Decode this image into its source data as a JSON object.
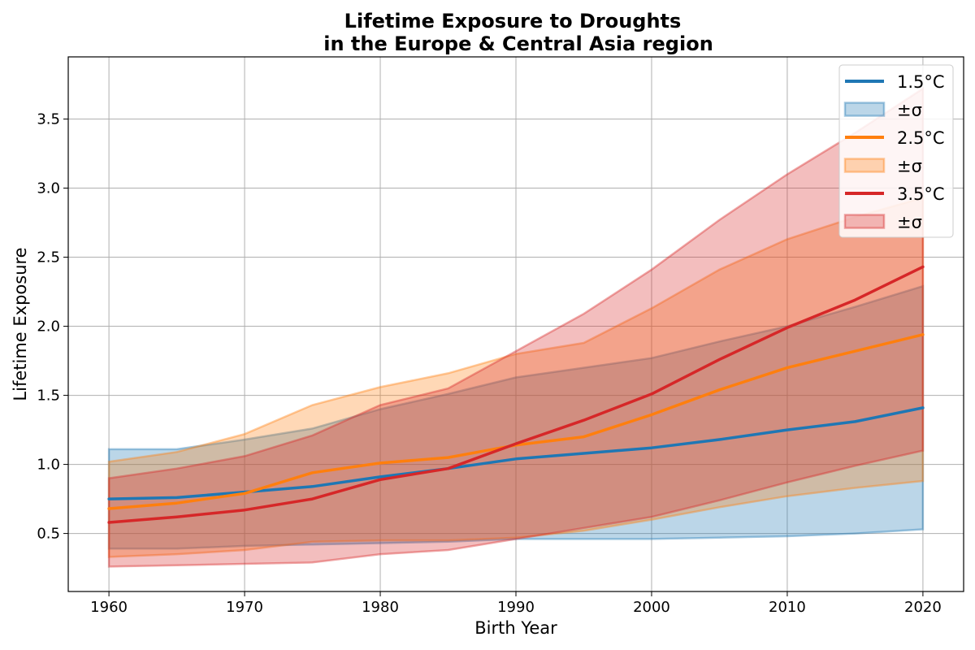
{
  "chart_data": {
    "type": "area",
    "title_line1": "Lifetime Exposure to Droughts",
    "title_line2": "in the Europe & Central Asia region",
    "xlabel": "Birth Year",
    "ylabel": "Lifetime Exposure",
    "xlim": [
      1957,
      2023
    ],
    "ylim": [
      0.08,
      3.95
    ],
    "xticks": [
      1960,
      1970,
      1980,
      1990,
      2000,
      2010,
      2020
    ],
    "yticks": [
      0.5,
      1.0,
      1.5,
      2.0,
      2.5,
      3.0,
      3.5
    ],
    "ytick_labels": [
      "0.5",
      "1.0",
      "1.5",
      "2.0",
      "2.5",
      "3.0",
      "3.5"
    ],
    "grid": true,
    "legend_position": "top-right",
    "x": [
      1960,
      1965,
      1970,
      1975,
      1980,
      1985,
      1990,
      1995,
      2000,
      2005,
      2010,
      2015,
      2020
    ],
    "series": [
      {
        "name": "1.5°C",
        "band_label": "±σ",
        "color": "#1f77b4",
        "band_color": "#1f77b4",
        "mean": [
          0.75,
          0.76,
          0.8,
          0.84,
          0.91,
          0.97,
          1.04,
          1.08,
          1.12,
          1.18,
          1.25,
          1.31,
          1.41
        ],
        "upper": [
          1.11,
          1.11,
          1.18,
          1.26,
          1.4,
          1.51,
          1.63,
          1.7,
          1.77,
          1.89,
          2.0,
          2.14,
          2.29
        ],
        "lower": [
          0.39,
          0.39,
          0.41,
          0.42,
          0.43,
          0.44,
          0.46,
          0.46,
          0.46,
          0.47,
          0.48,
          0.5,
          0.53
        ]
      },
      {
        "name": "2.5°C",
        "band_label": "±σ",
        "color": "#ff7f0e",
        "band_color": "#ff7f0e",
        "mean": [
          0.68,
          0.72,
          0.79,
          0.94,
          1.01,
          1.05,
          1.14,
          1.2,
          1.36,
          1.54,
          1.7,
          1.82,
          1.94
        ],
        "upper": [
          1.02,
          1.09,
          1.22,
          1.43,
          1.56,
          1.66,
          1.8,
          1.88,
          2.13,
          2.41,
          2.63,
          2.79,
          2.93
        ],
        "lower": [
          0.33,
          0.35,
          0.38,
          0.44,
          0.45,
          0.45,
          0.47,
          0.52,
          0.6,
          0.69,
          0.77,
          0.83,
          0.88
        ]
      },
      {
        "name": "3.5°C",
        "band_label": "±σ",
        "color": "#d62728",
        "band_color": "#d62728",
        "mean": [
          0.58,
          0.62,
          0.67,
          0.75,
          0.89,
          0.97,
          1.15,
          1.32,
          1.51,
          1.76,
          1.99,
          2.19,
          2.43
        ],
        "upper": [
          0.9,
          0.97,
          1.06,
          1.21,
          1.43,
          1.55,
          1.82,
          2.09,
          2.41,
          2.77,
          3.1,
          3.4,
          3.72
        ],
        "lower": [
          0.26,
          0.27,
          0.28,
          0.29,
          0.35,
          0.38,
          0.46,
          0.54,
          0.62,
          0.74,
          0.87,
          0.99,
          1.1
        ]
      }
    ]
  }
}
